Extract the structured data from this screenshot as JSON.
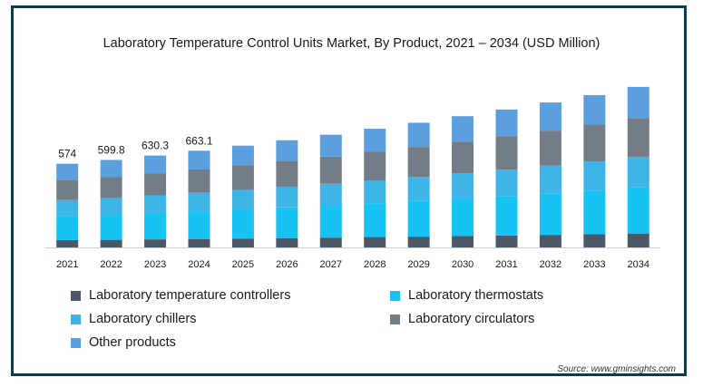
{
  "chart_data": {
    "type": "bar",
    "stacked": true,
    "title": "Laboratory Temperature Control Units Market, By Product, 2021 – 2034 (USD Million)",
    "categories": [
      "2021",
      "2022",
      "2023",
      "2024",
      "2025",
      "2026",
      "2027",
      "2028",
      "2029",
      "2030",
      "2031",
      "2032",
      "2033",
      "2034"
    ],
    "series": [
      {
        "name": "Laboratory temperature controllers",
        "color": "#4a5868",
        "values": [
          50,
          52,
          55,
          58,
          61,
          64,
          67,
          71,
          74,
          78,
          82,
          86,
          90,
          95
        ]
      },
      {
        "name": "Laboratory thermostats",
        "color": "#17c3f2",
        "values": [
          165,
          172,
          181,
          190,
          200,
          211,
          222,
          233,
          245,
          258,
          271,
          285,
          300,
          316
        ]
      },
      {
        "name": "Laboratory chillers",
        "color": "#3fb4e6",
        "values": [
          110,
          115,
          121,
          127,
          134,
          141,
          148,
          156,
          164,
          172,
          181,
          190,
          200,
          211
        ]
      },
      {
        "name": "Laboratory circulators",
        "color": "#737d87",
        "values": [
          139,
          145,
          152,
          160,
          168,
          177,
          186,
          196,
          206,
          217,
          228,
          240,
          252,
          265
        ]
      },
      {
        "name": "Other products",
        "color": "#5b9fde",
        "values": [
          110,
          115.8,
          121.3,
          128.1,
          135,
          142,
          150,
          158,
          166,
          175,
          184,
          193,
          203,
          214
        ]
      }
    ],
    "totals": [
      574,
      599.8,
      630.3,
      663.1,
      698,
      735,
      773,
      814,
      855,
      900,
      946,
      994,
      1045,
      1101
    ],
    "data_labels": [
      {
        "category": "2021",
        "text": "574"
      },
      {
        "category": "2022",
        "text": "599.8"
      },
      {
        "category": "2023",
        "text": "630.3"
      },
      {
        "category": "2024",
        "text": "663.1"
      }
    ],
    "ylim": [
      0,
      1150
    ],
    "legend_position": "bottom"
  },
  "legend": [
    {
      "label": "Laboratory temperature controllers",
      "color": "#4a5868"
    },
    {
      "label": "Laboratory thermostats",
      "color": "#17c3f2"
    },
    {
      "label": "Laboratory chillers",
      "color": "#3fb4e6"
    },
    {
      "label": "Laboratory circulators",
      "color": "#737d87"
    },
    {
      "label": "Other products",
      "color": "#5b9fde"
    }
  ],
  "source": "Source: www.gminsights.com"
}
